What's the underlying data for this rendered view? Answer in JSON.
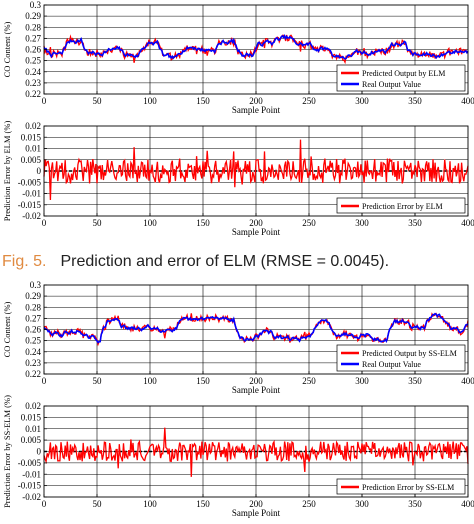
{
  "figure": {
    "caption_label": "Fig. 5.",
    "caption_text": "Prediction and error of ELM (RMSE = 0.0045)."
  },
  "colors": {
    "predicted": "#ff0000",
    "real": "#0000ff",
    "zero_line": "#000000"
  },
  "chart_data": [
    {
      "type": "line",
      "xlabel": "Sample Point",
      "ylabel": "CO Content (%)",
      "xlim": [
        0,
        400
      ],
      "ylim": [
        0.22,
        0.3
      ],
      "xticks": [
        0,
        50,
        100,
        150,
        200,
        250,
        300,
        350,
        400
      ],
      "yticks": [
        0.22,
        0.23,
        0.24,
        0.25,
        0.26,
        0.27,
        0.28,
        0.29,
        0.3
      ],
      "ytick_labels": [
        "0.22",
        "0.23",
        "0.24",
        "0.25",
        "0.26",
        "0.27",
        "0.28",
        "0.29",
        "0.3"
      ],
      "grid": true,
      "legend": "bottom-right",
      "series": [
        {
          "name": "Predicted Output by ELM",
          "color": "#ff0000",
          "values": []
        },
        {
          "name": "Real Output Value",
          "color": "#0000ff",
          "values": []
        }
      ]
    },
    {
      "type": "line",
      "xlabel": "Sample Point",
      "ylabel": "Prediction Error by ELM (%)",
      "xlim": [
        0,
        400
      ],
      "ylim": [
        -0.02,
        0.02
      ],
      "xticks": [
        0,
        50,
        100,
        150,
        200,
        250,
        300,
        350,
        400
      ],
      "yticks": [
        -0.02,
        -0.015,
        -0.01,
        -0.005,
        0,
        0.005,
        0.01,
        0.015,
        0.02
      ],
      "ytick_labels": [
        "-0.02",
        "-0.015",
        "-0.01",
        "-0.005",
        "0",
        "0.005",
        "0.01",
        "0.015",
        "0.02"
      ],
      "grid": true,
      "legend": "bottom-right",
      "reference_line": 0,
      "series": [
        {
          "name": "Prediction Error by ELM",
          "color": "#ff0000",
          "values": []
        }
      ]
    },
    {
      "type": "line",
      "xlabel": "Sample Point",
      "ylabel": "CO Content (%)",
      "xlim": [
        0,
        400
      ],
      "ylim": [
        0.22,
        0.3
      ],
      "xticks": [
        0,
        50,
        100,
        150,
        200,
        250,
        300,
        350,
        400
      ],
      "yticks": [
        0.22,
        0.23,
        0.24,
        0.25,
        0.26,
        0.27,
        0.28,
        0.29,
        0.3
      ],
      "ytick_labels": [
        "0.22",
        "0.23",
        "0.24",
        "0.25",
        "0.26",
        "0.27",
        "0.28",
        "0.29",
        "0.3"
      ],
      "grid": true,
      "legend": "bottom-right",
      "series": [
        {
          "name": "Predicted Output by SS-ELM",
          "color": "#ff0000",
          "values": []
        },
        {
          "name": "Real Output Value",
          "color": "#0000ff",
          "values": []
        }
      ]
    },
    {
      "type": "line",
      "xlabel": "Sample Point",
      "ylabel": "Prediction Error by SS-ELM (%)",
      "xlim": [
        0,
        400
      ],
      "ylim": [
        -0.02,
        0.02
      ],
      "xticks": [
        0,
        50,
        100,
        150,
        200,
        250,
        300,
        350,
        400
      ],
      "yticks": [
        -0.02,
        -0.015,
        -0.01,
        -0.005,
        0,
        0.005,
        0.01,
        0.015,
        0.02
      ],
      "ytick_labels": [
        "-0.02",
        "-0.015",
        "-0.01",
        "-0.005",
        "0",
        "0.005",
        "0.01",
        "0.015",
        "0.02"
      ],
      "grid": true,
      "legend": "bottom-right",
      "reference_line": 0,
      "series": [
        {
          "name": "Prediction Error by SS-ELM",
          "color": "#ff0000",
          "values": []
        }
      ]
    }
  ]
}
